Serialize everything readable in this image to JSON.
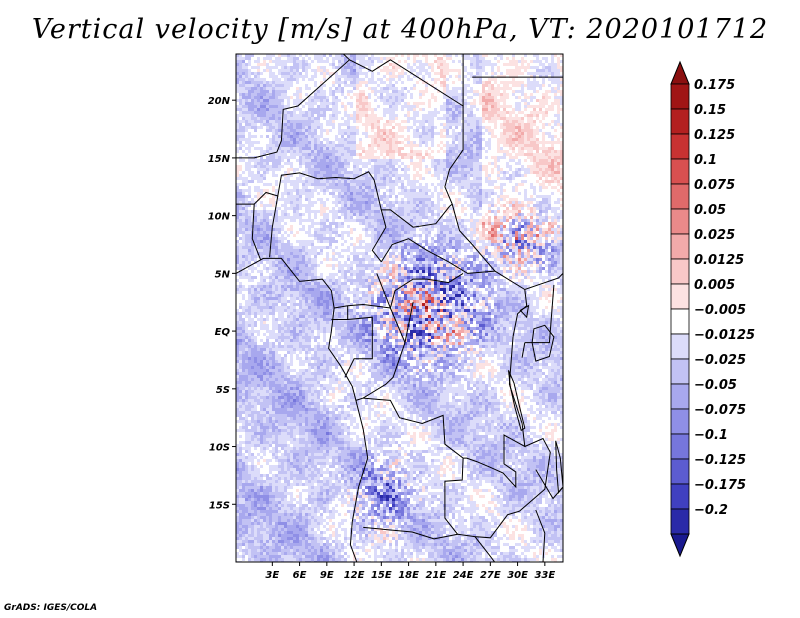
{
  "chart_data": {
    "type": "heatmap",
    "title": "Vertical velocity [m/s] at 400hPa, VT: 2020101712",
    "x_axis": {
      "range_deg": [
        -1.0,
        35.0
      ],
      "ticks": [
        {
          "value": 3,
          "label": "3E"
        },
        {
          "value": 6,
          "label": "6E"
        },
        {
          "value": 9,
          "label": "9E"
        },
        {
          "value": 12,
          "label": "12E"
        },
        {
          "value": 15,
          "label": "15E"
        },
        {
          "value": 18,
          "label": "18E"
        },
        {
          "value": 21,
          "label": "21E"
        },
        {
          "value": 24,
          "label": "24E"
        },
        {
          "value": 27,
          "label": "27E"
        },
        {
          "value": 30,
          "label": "30E"
        },
        {
          "value": 33,
          "label": "33E"
        }
      ]
    },
    "y_axis": {
      "range_deg": [
        -20.0,
        24.0
      ],
      "ticks": [
        {
          "value": 20,
          "label": "20N"
        },
        {
          "value": 15,
          "label": "15N"
        },
        {
          "value": 10,
          "label": "10N"
        },
        {
          "value": 5,
          "label": "5N"
        },
        {
          "value": 0,
          "label": "EQ"
        },
        {
          "value": -5,
          "label": "5S"
        },
        {
          "value": -10,
          "label": "10S"
        },
        {
          "value": -15,
          "label": "15S"
        }
      ]
    },
    "colorbar": {
      "levels": [
        {
          "label": "0.175",
          "color": "#a01515"
        },
        {
          "label": "0.15",
          "color": "#b32020"
        },
        {
          "label": "0.125",
          "color": "#c83232"
        },
        {
          "label": "0.1",
          "color": "#d85050"
        },
        {
          "label": "0.075",
          "color": "#e06a6a"
        },
        {
          "label": "0.05",
          "color": "#ea8a8a"
        },
        {
          "label": "0.025",
          "color": "#f2aaaa"
        },
        {
          "label": "0.0125",
          "color": "#f8c8c8"
        },
        {
          "label": "0.005",
          "color": "#fce2e2"
        },
        {
          "label": "−0.005",
          "color": "#ffffff"
        },
        {
          "label": "−0.0125",
          "color": "#dcdcfa"
        },
        {
          "label": "−0.025",
          "color": "#c2c2f4"
        },
        {
          "label": "−0.05",
          "color": "#a8a8ee"
        },
        {
          "label": "−0.075",
          "color": "#8f8fe6"
        },
        {
          "label": "−0.1",
          "color": "#7676dc"
        },
        {
          "label": "−0.125",
          "color": "#5c5cd0"
        },
        {
          "label": "−0.175",
          "color": "#4040c0"
        },
        {
          "label": "−0.2",
          "color": "#2a2aa8"
        }
      ],
      "top_extension_color": "#8b1010",
      "bottom_extension_color": "#1a1a90"
    },
    "field_description": {
      "units": "m/s",
      "level": "400hPa",
      "valid_time": "2020101712"
    }
  },
  "footer": {
    "credit": "GrADS: IGES/COLA"
  }
}
